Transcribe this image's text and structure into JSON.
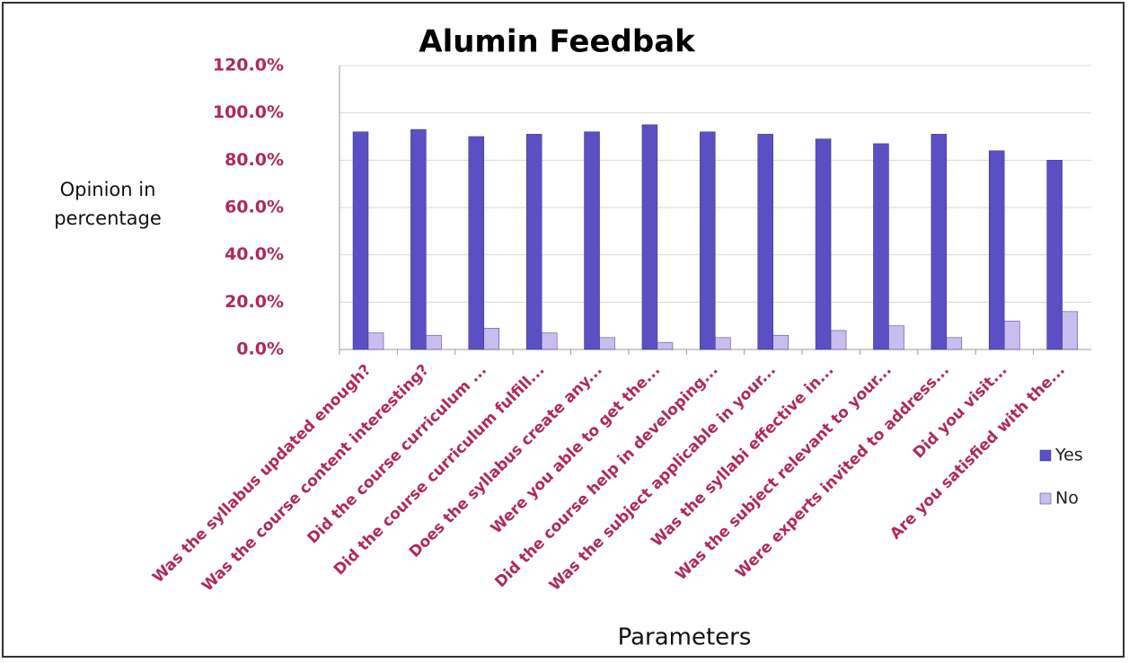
{
  "chart_data": {
    "type": "bar",
    "title": "Alumin Feedbak",
    "ylabel": "Opinion in percentage",
    "xlabel": "Parameters",
    "categories": [
      "Was the syllabus updated enough?",
      "Was the course content interesting?",
      "Did the course curriculum ...",
      "Did the course curriculum fulfill...",
      "Does the syllabus create any...",
      "Were you able to get the...",
      "Did the course help in developing...",
      "Was the subject applicable in your...",
      "Was the syllabi effective in...",
      "Was the subject relevant to your...",
      "Were experts invited to address...",
      "Did you visit...",
      "Are you satisfied with the..."
    ],
    "series": [
      {
        "name": "Yes",
        "color": "#5b4fc4",
        "values": [
          92,
          93,
          90,
          91,
          92,
          95,
          92,
          91,
          89,
          87,
          91,
          84,
          80
        ]
      },
      {
        "name": "No",
        "color": "#c9bdf0",
        "values": [
          7,
          6,
          9,
          7,
          5,
          3,
          5,
          6,
          8,
          10,
          5,
          12,
          16
        ]
      }
    ],
    "ylim": [
      0,
      120
    ],
    "yticks": [
      {
        "value": 0,
        "label": "0.0%"
      },
      {
        "value": 20,
        "label": "20.0%"
      },
      {
        "value": 40,
        "label": "40.0%"
      },
      {
        "value": 60,
        "label": "60.0%"
      },
      {
        "value": 80,
        "label": "80.0%"
      },
      {
        "value": 100,
        "label": "100.0%"
      },
      {
        "value": 120,
        "label": "120.0%"
      }
    ],
    "grid": true,
    "legend": "right"
  }
}
